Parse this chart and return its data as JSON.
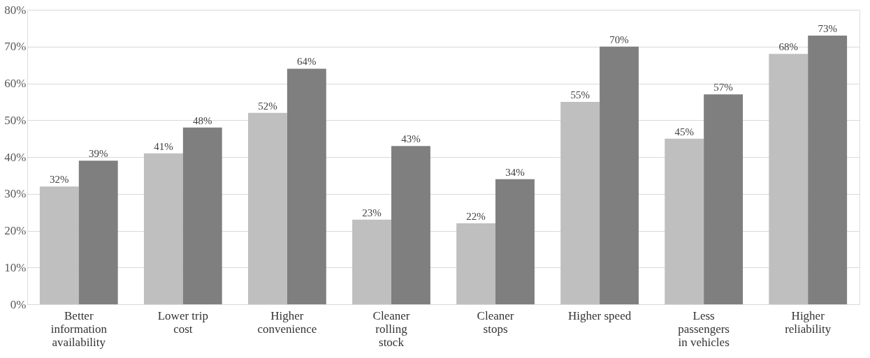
{
  "chart_data": {
    "type": "bar",
    "categories": [
      "Better information availability",
      "Lower trip cost",
      "Higher convenience",
      "Cleaner rolling stock",
      "Cleaner stops",
      "Higher speed",
      "Less passengers in vehicles",
      "Higher reliability"
    ],
    "series": [
      {
        "color": "#bfbfbf",
        "values": [
          32,
          41,
          52,
          23,
          22,
          55,
          45,
          68
        ],
        "value_labels": [
          "32%",
          "41%",
          "52%",
          "23%",
          "22%",
          "55%",
          "45%",
          "68%"
        ]
      },
      {
        "color": "#7f7f7f",
        "values": [
          39,
          48,
          64,
          43,
          34,
          70,
          57,
          73
        ],
        "value_labels": [
          "39%",
          "48%",
          "64%",
          "43%",
          "34%",
          "70%",
          "57%",
          "73%"
        ]
      }
    ],
    "ylim": [
      0,
      80
    ],
    "yticks": [
      {
        "value": 0,
        "label": "0%"
      },
      {
        "value": 10,
        "label": "10%"
      },
      {
        "value": 20,
        "label": "20%"
      },
      {
        "value": 30,
        "label": "30%"
      },
      {
        "value": 40,
        "label": "40%"
      },
      {
        "value": 50,
        "label": "50%"
      },
      {
        "value": 60,
        "label": "60%"
      },
      {
        "value": 70,
        "label": "70%"
      },
      {
        "value": 80,
        "label": "80%"
      }
    ],
    "grid": "y",
    "legend": false
  }
}
